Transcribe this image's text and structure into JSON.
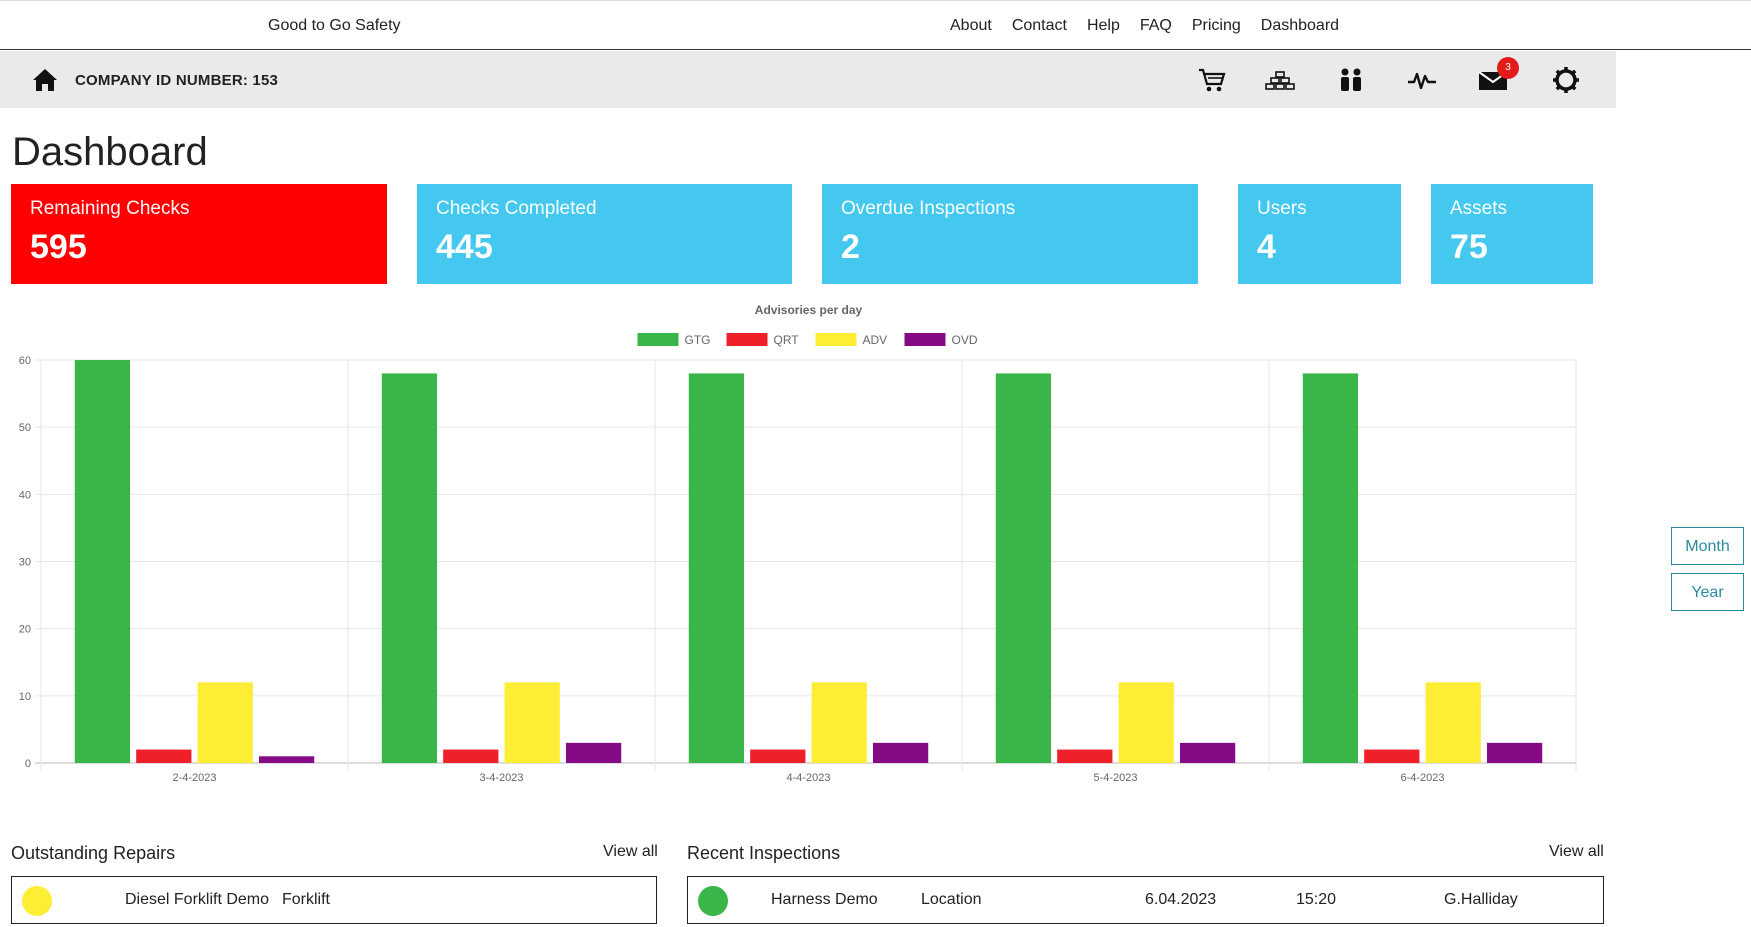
{
  "nav": {
    "brand": "Good to Go Safety",
    "links": [
      "About",
      "Contact",
      "Help",
      "FAQ",
      "Pricing",
      "Dashboard"
    ]
  },
  "subbar": {
    "company_label": "COMPANY ID NUMBER: 153",
    "icons": [
      "home-icon",
      "cart-icon",
      "assets-icon",
      "users-icon",
      "activity-icon",
      "mail-icon",
      "settings-icon"
    ],
    "mail_badge": "3"
  },
  "page": {
    "title": "Dashboard"
  },
  "cards": [
    {
      "label": "Remaining Checks",
      "value": "595",
      "color": "#ff0000"
    },
    {
      "label": "Checks Completed",
      "value": "445",
      "color": "#45c8f0"
    },
    {
      "label": "Overdue Inspections",
      "value": "2",
      "color": "#45c8f0"
    },
    {
      "label": "Users",
      "value": "4",
      "color": "#45c8f0"
    },
    {
      "label": "Assets",
      "value": "75",
      "color": "#45c8f0"
    }
  ],
  "range_buttons": {
    "month": "Month",
    "year": "Year"
  },
  "chart_data": {
    "type": "bar",
    "title": "Advisories per day",
    "categories": [
      "2-4-2023",
      "3-4-2023",
      "4-4-2023",
      "5-4-2023",
      "6-4-2023"
    ],
    "series": [
      {
        "name": "GTG",
        "color": "#3ab54a",
        "values": [
          60,
          58,
          58,
          58,
          58
        ]
      },
      {
        "name": "QRT",
        "color": "#f0202a",
        "values": [
          2,
          2,
          2,
          2,
          2
        ]
      },
      {
        "name": "ADV",
        "color": "#fdee35",
        "values": [
          12,
          12,
          12,
          12,
          12
        ]
      },
      {
        "name": "OVD",
        "color": "#860a86",
        "values": [
          1,
          3,
          3,
          3,
          3
        ]
      }
    ],
    "ylim": [
      0,
      60
    ],
    "yticks": [
      0,
      10,
      20,
      30,
      40,
      50,
      60
    ],
    "legend": "top-center",
    "grid": true
  },
  "repairs": {
    "title": "Outstanding Repairs",
    "view_all": "View all",
    "rows": [
      {
        "status_color": "#fdee35",
        "name": "Diesel Forklift Demo",
        "type": "Forklift"
      }
    ]
  },
  "inspections": {
    "title": "Recent Inspections",
    "view_all": "View all",
    "rows": [
      {
        "status_color": "#3ab54a",
        "name": "Harness Demo",
        "location": "Location",
        "date": "6.04.2023",
        "time": "15:20",
        "user": "G.Halliday"
      }
    ]
  }
}
